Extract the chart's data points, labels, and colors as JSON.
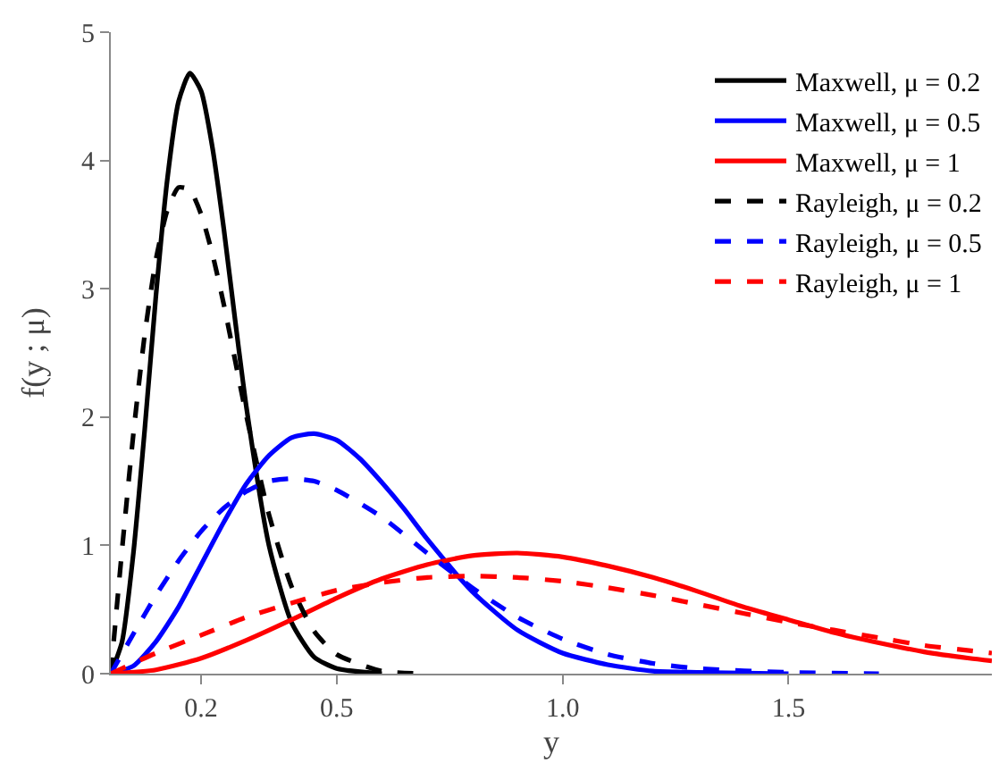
{
  "chart_data": {
    "type": "line",
    "xlabel": "y",
    "ylabel": "f(y ; μ)",
    "xlim": [
      0,
      1.95
    ],
    "xticks": [
      0.2,
      0.5,
      {
        "value": 1,
        "label": "1.0"
      },
      1.5
    ],
    "ylim": [
      0,
      5
    ],
    "yticks": [
      0,
      1,
      2,
      3,
      4,
      5
    ],
    "legend": "top right",
    "marker": "none",
    "series": [
      {
        "name": "Maxwell, μ = 0.2",
        "color": "#000000",
        "line_style": "solid",
        "x": [
          0,
          0.025,
          0.05,
          0.075,
          0.1,
          0.125,
          0.15,
          0.175,
          0.2,
          0.225,
          0.25,
          0.275,
          0.3,
          0.35,
          0.4,
          0.45,
          0.5,
          0.6
        ],
        "values": [
          0,
          0.25,
          0.94,
          1.9,
          2.95,
          3.85,
          4.46,
          4.68,
          4.54,
          4.1,
          3.47,
          2.76,
          2.08,
          1.0,
          0.4,
          0.13,
          0.04,
          0
        ]
      },
      {
        "name": "Maxwell, μ = 0.5",
        "color": "#0000ff",
        "line_style": "solid",
        "x": [
          0,
          0.05,
          0.1,
          0.15,
          0.2,
          0.25,
          0.3,
          0.35,
          0.4,
          0.45,
          0.5,
          0.55,
          0.6,
          0.65,
          0.7,
          0.8,
          0.9,
          1.0,
          1.1,
          1.2,
          1.3,
          1.5
        ],
        "values": [
          0,
          0.06,
          0.25,
          0.52,
          0.85,
          1.18,
          1.48,
          1.7,
          1.84,
          1.87,
          1.82,
          1.68,
          1.49,
          1.28,
          1.05,
          0.64,
          0.34,
          0.16,
          0.07,
          0.02,
          0.01,
          0
        ]
      },
      {
        "name": "Maxwell, μ = 1",
        "color": "#ff0000",
        "line_style": "solid",
        "x": [
          0,
          0.1,
          0.2,
          0.3,
          0.4,
          0.5,
          0.6,
          0.7,
          0.8,
          0.9,
          1.0,
          1.1,
          1.2,
          1.3,
          1.4,
          1.5,
          1.6,
          1.7,
          1.8,
          1.9,
          1.95
        ],
        "values": [
          0,
          0.03,
          0.12,
          0.26,
          0.42,
          0.59,
          0.74,
          0.85,
          0.92,
          0.94,
          0.91,
          0.84,
          0.75,
          0.64,
          0.52,
          0.42,
          0.32,
          0.24,
          0.17,
          0.12,
          0.1
        ]
      },
      {
        "name": "Rayleigh, μ = 0.2",
        "color": "#000000",
        "line_style": "dashed",
        "x": [
          0,
          0.025,
          0.05,
          0.075,
          0.1,
          0.125,
          0.15,
          0.175,
          0.2,
          0.225,
          0.25,
          0.3,
          0.35,
          0.4,
          0.45,
          0.5,
          0.6,
          0.7
        ],
        "values": [
          0,
          0.97,
          1.87,
          2.64,
          3.23,
          3.61,
          3.79,
          3.77,
          3.58,
          3.27,
          2.88,
          2.01,
          1.24,
          0.68,
          0.33,
          0.15,
          0.02,
          0
        ]
      },
      {
        "name": "Rayleigh, μ = 0.5",
        "color": "#0000ff",
        "line_style": "dashed",
        "x": [
          0,
          0.05,
          0.1,
          0.15,
          0.2,
          0.25,
          0.3,
          0.35,
          0.4,
          0.45,
          0.5,
          0.6,
          0.7,
          0.8,
          0.9,
          1.0,
          1.1,
          1.2,
          1.3,
          1.5,
          1.7
        ],
        "values": [
          0,
          0.31,
          0.61,
          0.88,
          1.11,
          1.29,
          1.42,
          1.5,
          1.52,
          1.5,
          1.43,
          1.22,
          0.94,
          0.67,
          0.44,
          0.27,
          0.15,
          0.08,
          0.04,
          0.01,
          0
        ]
      },
      {
        "name": "Rayleigh, μ = 1",
        "color": "#ff0000",
        "line_style": "dashed",
        "x": [
          0,
          0.1,
          0.2,
          0.3,
          0.4,
          0.5,
          0.6,
          0.7,
          0.8,
          0.9,
          1.0,
          1.1,
          1.2,
          1.3,
          1.4,
          1.5,
          1.6,
          1.7,
          1.8,
          1.9,
          1.95
        ],
        "values": [
          0,
          0.16,
          0.3,
          0.44,
          0.55,
          0.65,
          0.71,
          0.75,
          0.76,
          0.75,
          0.72,
          0.67,
          0.61,
          0.54,
          0.47,
          0.4,
          0.34,
          0.28,
          0.22,
          0.18,
          0.16
        ]
      }
    ]
  }
}
